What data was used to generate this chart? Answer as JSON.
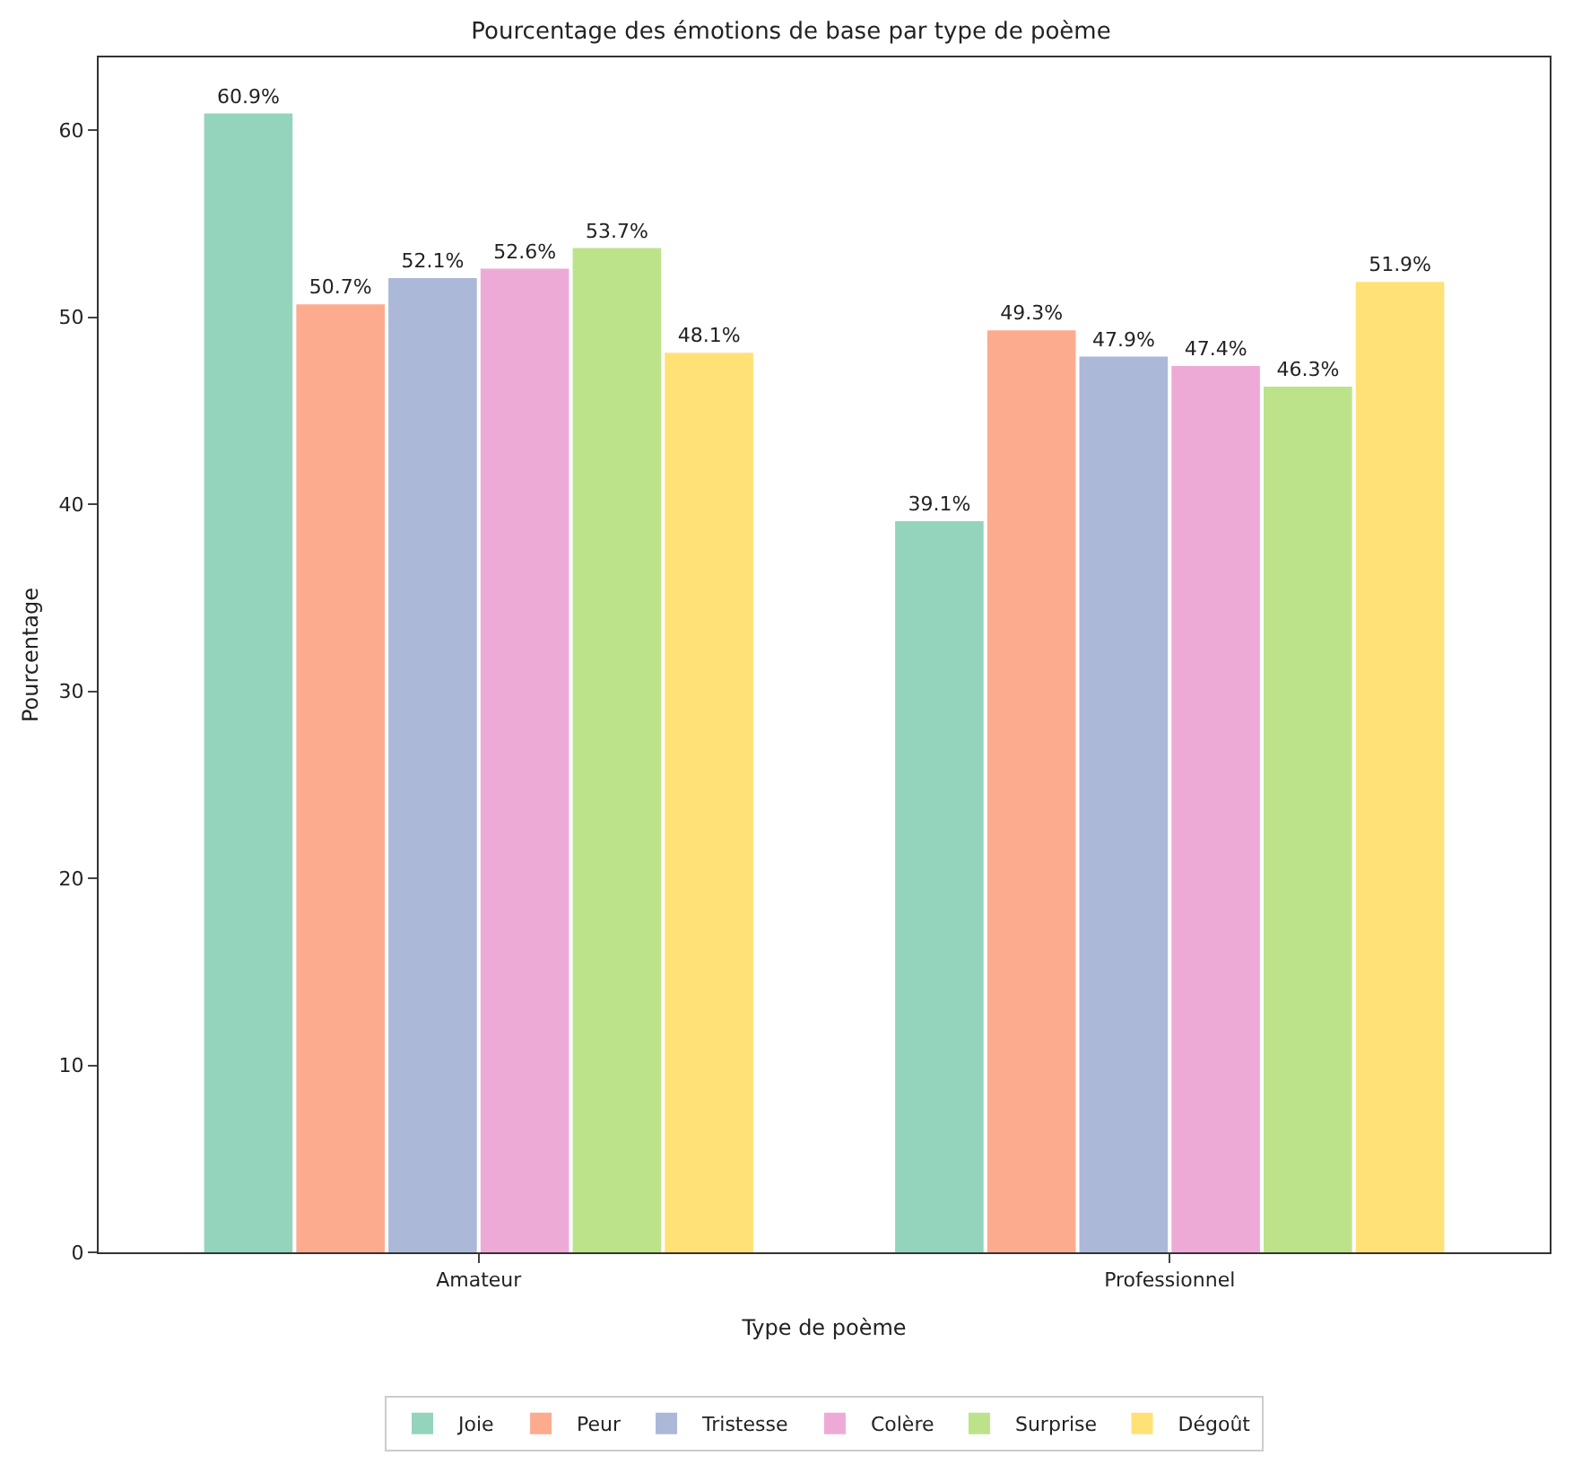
{
  "chart_data": {
    "type": "bar",
    "title": "Pourcentage des émotions de base par type de poème",
    "xlabel": "Type de poème",
    "ylabel": "Pourcentage",
    "categories": [
      "Amateur",
      "Professionnel"
    ],
    "series": [
      {
        "name": "Joie",
        "color": "#94d4bc",
        "values": [
          60.9,
          39.1
        ],
        "value_labels": [
          "60.9%",
          "39.1%"
        ]
      },
      {
        "name": "Peur",
        "color": "#fcab8f",
        "values": [
          50.7,
          49.3
        ],
        "value_labels": [
          "50.7%",
          "49.3%"
        ]
      },
      {
        "name": "Tristesse",
        "color": "#abb8d8",
        "values": [
          52.1,
          47.9
        ],
        "value_labels": [
          "52.1%",
          "47.9%"
        ]
      },
      {
        "name": "Colère",
        "color": "#eeaad6",
        "values": [
          52.6,
          47.4
        ],
        "value_labels": [
          "52.6%",
          "47.4%"
        ]
      },
      {
        "name": "Surprise",
        "color": "#bde38a",
        "values": [
          53.7,
          46.3
        ],
        "value_labels": [
          "53.7%",
          "46.3%"
        ]
      },
      {
        "name": "Dégoût",
        "color": "#ffe176",
        "values": [
          48.1,
          51.9
        ],
        "value_labels": [
          "48.1%",
          "51.9%"
        ]
      }
    ],
    "ylim": [
      0,
      63.9
    ],
    "yticks": [
      0,
      10,
      20,
      30,
      40,
      50,
      60
    ],
    "grid": false,
    "legend": "bottom"
  }
}
